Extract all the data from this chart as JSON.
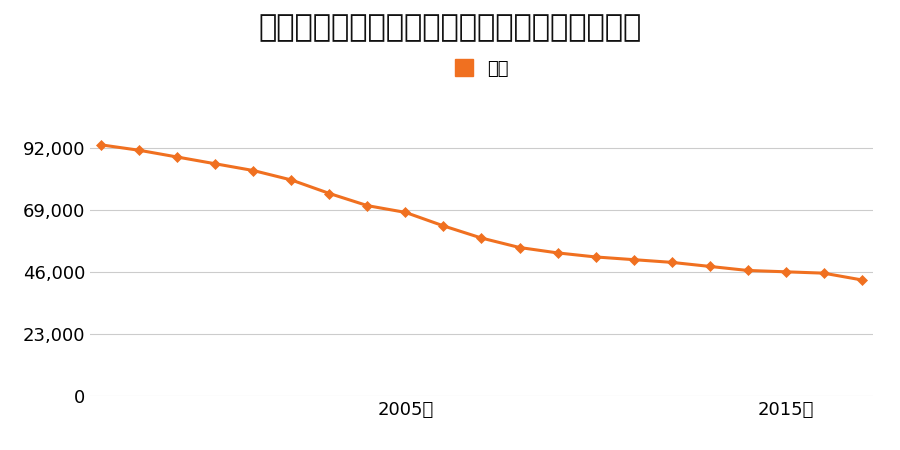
{
  "title": "栃木県宇都宮市瑞穂１丁目１８番６の地価推移",
  "legend_label": "価格",
  "line_color": "#f07020",
  "marker_color": "#f07020",
  "background_color": "#ffffff",
  "years": [
    1997,
    1998,
    1999,
    2000,
    2001,
    2002,
    2003,
    2004,
    2005,
    2006,
    2007,
    2008,
    2009,
    2010,
    2011,
    2012,
    2013,
    2014,
    2015,
    2016,
    2017
  ],
  "values": [
    93000,
    91000,
    88500,
    86000,
    83500,
    80000,
    75000,
    70500,
    68000,
    63000,
    58500,
    55000,
    53000,
    51500,
    50500,
    49500,
    48000,
    46500,
    46000,
    45500,
    43000
  ],
  "yticks": [
    0,
    23000,
    46000,
    69000,
    92000
  ],
  "ylim": [
    0,
    100000
  ],
  "xtick_labels": [
    "2005年",
    "2015年"
  ],
  "xtick_positions": [
    2005,
    2015
  ],
  "grid_color": "#cccccc",
  "title_fontsize": 22,
  "legend_fontsize": 13,
  "tick_fontsize": 13,
  "figsize": [
    9.0,
    4.5
  ],
  "dpi": 100
}
